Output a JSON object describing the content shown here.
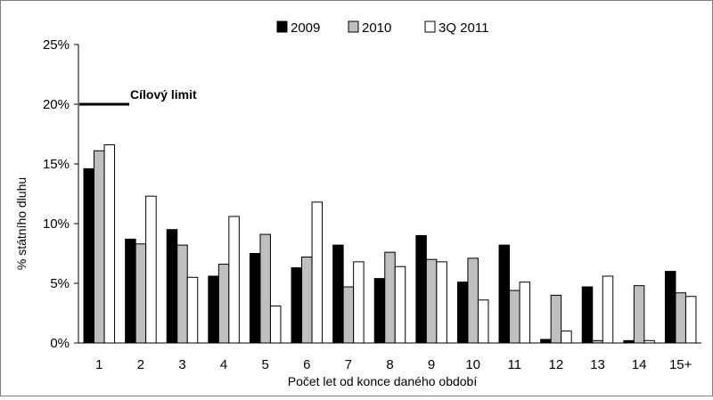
{
  "chart_data": {
    "type": "bar",
    "categories": [
      "1",
      "2",
      "3",
      "4",
      "5",
      "6",
      "7",
      "8",
      "9",
      "10",
      "11",
      "12",
      "13",
      "14",
      "15+"
    ],
    "series": [
      {
        "name": "2009",
        "color": "#000000",
        "values": [
          14.6,
          8.7,
          9.5,
          5.6,
          7.5,
          6.3,
          8.2,
          5.4,
          9.0,
          5.1,
          8.2,
          0.3,
          4.7,
          0.2,
          6.0
        ]
      },
      {
        "name": "2010",
        "color": "#bfbfbf",
        "values": [
          16.1,
          8.3,
          8.2,
          6.6,
          9.1,
          7.2,
          4.7,
          7.6,
          7.0,
          7.1,
          4.4,
          4.0,
          0.2,
          4.8,
          4.2
        ]
      },
      {
        "name": "3Q 2011",
        "color": "#ffffff",
        "values": [
          16.6,
          12.3,
          5.5,
          10.6,
          3.1,
          11.8,
          6.8,
          6.4,
          6.8,
          3.6,
          5.1,
          1.0,
          5.6,
          0.2,
          3.9
        ]
      }
    ],
    "xlabel": "Počet let od konce daného období",
    "ylabel": "% státního dluhu",
    "ylim": [
      0,
      25
    ],
    "yticks": [
      "0%",
      "5%",
      "10%",
      "15%",
      "20%",
      "25%"
    ],
    "ytick_values": [
      0,
      5,
      10,
      15,
      20,
      25
    ],
    "grid": false,
    "legend_position": "top",
    "annotation": {
      "label": "Cílový limit",
      "value": 20
    }
  }
}
